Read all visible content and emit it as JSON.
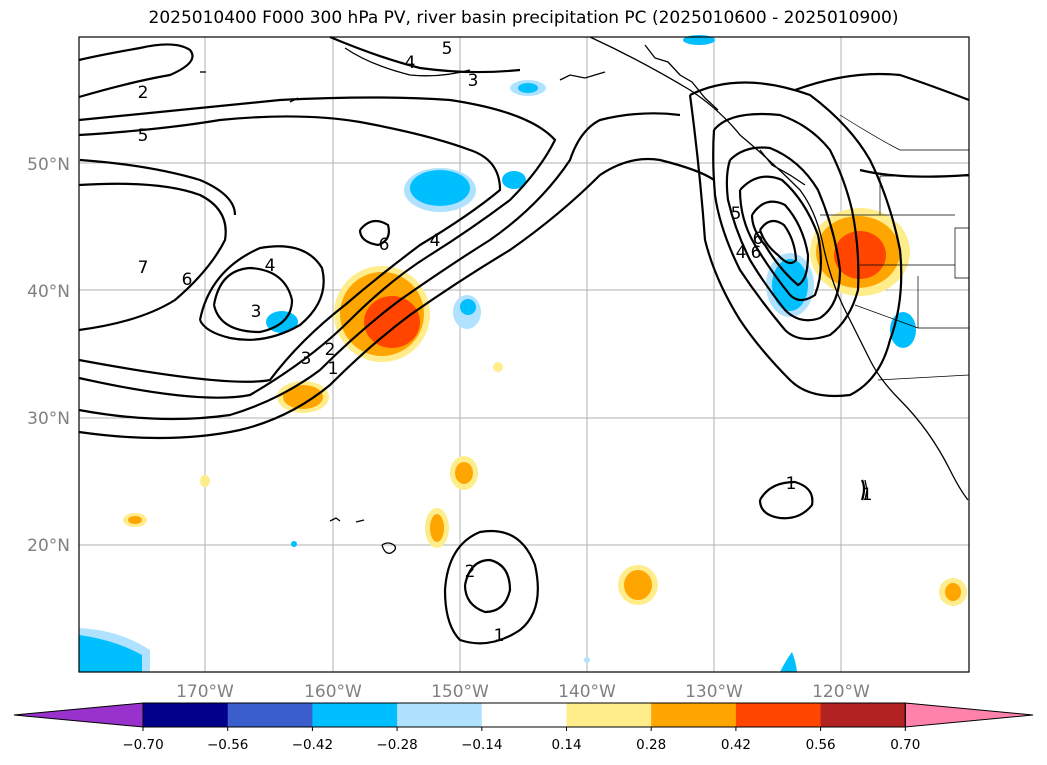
{
  "title": "2025010400 F000 300 hPa PV, river basin precipitation PC (2025010600 - 2025010900)",
  "lat_labels": [
    "50°N",
    "40°N",
    "30°N",
    "20°N"
  ],
  "lon_labels": [
    "170°W",
    "160°W",
    "150°W",
    "140°W",
    "130°W",
    "120°W"
  ],
  "colorbar": {
    "ticks": [
      "−0.70",
      "−0.56",
      "−0.42",
      "−0.28",
      "−0.14",
      "0.14",
      "0.28",
      "0.42",
      "0.56",
      "0.70"
    ],
    "colors": [
      "#9932cc",
      "#00008b",
      "#3a5fcd",
      "#00bfff",
      "#b0e2ff",
      "#ffffff",
      "#ffec8b",
      "#ffa500",
      "#ff4500",
      "#b22222",
      "#ff82ab"
    ]
  },
  "contour_labels": [
    "2",
    "5",
    "3",
    "4",
    "5",
    "6",
    "4",
    "6",
    "4",
    "3",
    "3",
    "2",
    "1",
    "7",
    "6",
    "4",
    "5",
    "6",
    "1",
    "1",
    "2",
    "1"
  ]
}
